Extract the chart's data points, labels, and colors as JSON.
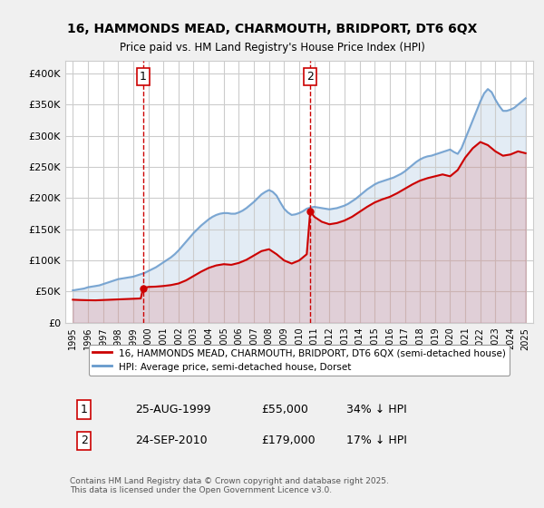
{
  "title": "16, HAMMONDS MEAD, CHARMOUTH, BRIDPORT, DT6 6QX",
  "subtitle": "Price paid vs. HM Land Registry's House Price Index (HPI)",
  "xlabel": "",
  "ylabel": "",
  "background_color": "#f0f0f0",
  "plot_bg_color": "#ffffff",
  "grid_color": "#cccccc",
  "red_line_color": "#cc0000",
  "blue_line_color": "#6699cc",
  "purchase1_date": 1999.65,
  "purchase1_price": 55000,
  "purchase1_label": "1",
  "purchase2_date": 2010.73,
  "purchase2_price": 179000,
  "purchase2_label": "2",
  "ylim": [
    0,
    420000
  ],
  "xlim": [
    1994.5,
    2025.5
  ],
  "yticks": [
    0,
    50000,
    100000,
    150000,
    200000,
    250000,
    300000,
    350000,
    400000
  ],
  "ytick_labels": [
    "£0",
    "£50K",
    "£100K",
    "£150K",
    "£200K",
    "£250K",
    "£300K",
    "£350K",
    "£400K"
  ],
  "legend_line1": "16, HAMMONDS MEAD, CHARMOUTH, BRIDPORT, DT6 6QX (semi-detached house)",
  "legend_line2": "HPI: Average price, semi-detached house, Dorset",
  "footnote": "Contains HM Land Registry data © Crown copyright and database right 2025.\nThis data is licensed under the Open Government Licence v3.0.",
  "table_row1": "1    25-AUG-1999         £55,000         34% ↓ HPI",
  "table_row2": "2    24-SEP-2010         £179,000       17% ↓ HPI",
  "hpi_years": [
    1995.0,
    1995.25,
    1995.5,
    1995.75,
    1996.0,
    1996.25,
    1996.5,
    1996.75,
    1997.0,
    1997.25,
    1997.5,
    1997.75,
    1998.0,
    1998.25,
    1998.5,
    1998.75,
    1999.0,
    1999.25,
    1999.5,
    1999.75,
    2000.0,
    2000.25,
    2000.5,
    2000.75,
    2001.0,
    2001.25,
    2001.5,
    2001.75,
    2002.0,
    2002.25,
    2002.5,
    2002.75,
    2003.0,
    2003.25,
    2003.5,
    2003.75,
    2004.0,
    2004.25,
    2004.5,
    2004.75,
    2005.0,
    2005.25,
    2005.5,
    2005.75,
    2006.0,
    2006.25,
    2006.5,
    2006.75,
    2007.0,
    2007.25,
    2007.5,
    2007.75,
    2008.0,
    2008.25,
    2008.5,
    2008.75,
    2009.0,
    2009.25,
    2009.5,
    2009.75,
    2010.0,
    2010.25,
    2010.5,
    2010.75,
    2011.0,
    2011.25,
    2011.5,
    2011.75,
    2012.0,
    2012.25,
    2012.5,
    2012.75,
    2013.0,
    2013.25,
    2013.5,
    2013.75,
    2014.0,
    2014.25,
    2014.5,
    2014.75,
    2015.0,
    2015.25,
    2015.5,
    2015.75,
    2016.0,
    2016.25,
    2016.5,
    2016.75,
    2017.0,
    2017.25,
    2017.5,
    2017.75,
    2018.0,
    2018.25,
    2018.5,
    2018.75,
    2019.0,
    2019.25,
    2019.5,
    2019.75,
    2020.0,
    2020.25,
    2020.5,
    2020.75,
    2021.0,
    2021.25,
    2021.5,
    2021.75,
    2022.0,
    2022.25,
    2022.5,
    2022.75,
    2023.0,
    2023.25,
    2023.5,
    2023.75,
    2024.0,
    2024.25,
    2024.5,
    2024.75,
    2025.0
  ],
  "hpi_values": [
    52000,
    53000,
    54000,
    55000,
    57000,
    58000,
    59000,
    60000,
    62000,
    64000,
    66000,
    68000,
    70000,
    71000,
    72000,
    73000,
    74000,
    76000,
    78000,
    80000,
    83000,
    86000,
    89000,
    93000,
    97000,
    101000,
    105000,
    110000,
    116000,
    123000,
    130000,
    137000,
    144000,
    150000,
    156000,
    161000,
    166000,
    170000,
    173000,
    175000,
    176000,
    176000,
    175000,
    175000,
    177000,
    180000,
    184000,
    189000,
    194000,
    200000,
    206000,
    210000,
    213000,
    210000,
    204000,
    193000,
    183000,
    177000,
    173000,
    174000,
    176000,
    179000,
    183000,
    185000,
    186000,
    185000,
    184000,
    183000,
    182000,
    183000,
    184000,
    186000,
    188000,
    191000,
    195000,
    199000,
    204000,
    209000,
    214000,
    218000,
    222000,
    225000,
    227000,
    229000,
    231000,
    233000,
    236000,
    239000,
    243000,
    248000,
    253000,
    258000,
    262000,
    265000,
    267000,
    268000,
    270000,
    272000,
    274000,
    276000,
    278000,
    274000,
    271000,
    280000,
    295000,
    310000,
    325000,
    340000,
    355000,
    368000,
    375000,
    370000,
    358000,
    348000,
    340000,
    340000,
    342000,
    345000,
    350000,
    355000,
    360000
  ],
  "red_years": [
    1995.0,
    1995.5,
    1996.0,
    1996.5,
    1997.0,
    1997.5,
    1998.0,
    1998.5,
    1999.0,
    1999.5,
    1999.65,
    1999.75,
    2000.0,
    2000.5,
    2001.0,
    2001.5,
    2002.0,
    2002.5,
    2003.0,
    2003.5,
    2004.0,
    2004.5,
    2005.0,
    2005.5,
    2006.0,
    2006.5,
    2007.0,
    2007.5,
    2008.0,
    2008.5,
    2009.0,
    2009.5,
    2010.0,
    2010.5,
    2010.73,
    2011.0,
    2011.5,
    2012.0,
    2012.5,
    2013.0,
    2013.5,
    2014.0,
    2014.5,
    2015.0,
    2015.5,
    2016.0,
    2016.5,
    2017.0,
    2017.5,
    2018.0,
    2018.5,
    2019.0,
    2019.5,
    2020.0,
    2020.5,
    2021.0,
    2021.5,
    2022.0,
    2022.5,
    2023.0,
    2023.5,
    2024.0,
    2024.5,
    2025.0
  ],
  "red_values": [
    37000,
    36500,
    36200,
    36000,
    36500,
    37000,
    37500,
    38000,
    38500,
    39000,
    55000,
    56000,
    57500,
    58000,
    59000,
    60500,
    63000,
    68000,
    75000,
    82000,
    88000,
    92000,
    94000,
    93000,
    96000,
    101000,
    108000,
    115000,
    118000,
    110000,
    100000,
    95000,
    100000,
    110000,
    179000,
    170000,
    162000,
    158000,
    160000,
    164000,
    170000,
    178000,
    186000,
    193000,
    198000,
    202000,
    208000,
    215000,
    222000,
    228000,
    232000,
    235000,
    238000,
    235000,
    245000,
    265000,
    280000,
    290000,
    285000,
    275000,
    268000,
    270000,
    275000,
    272000
  ]
}
